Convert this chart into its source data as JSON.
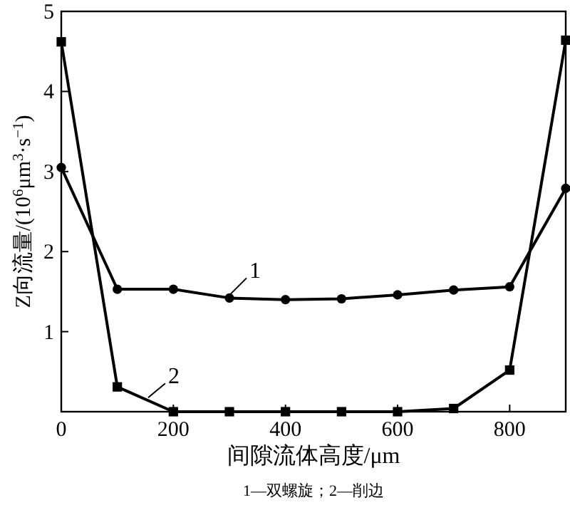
{
  "chart_data": {
    "type": "line",
    "xlabel": "间隙流体高度/μm",
    "ylabel": "Z向流量/(10$^{6}$μm$^{3}$·s$^{−1}$)",
    "x": [
      0,
      100,
      200,
      300,
      400,
      500,
      600,
      700,
      800,
      900
    ],
    "series": [
      {
        "name": "1",
        "color": "#000000",
        "marker": "circle",
        "values": [
          3.05,
          1.53,
          1.53,
          1.42,
          1.4,
          1.41,
          1.46,
          1.52,
          1.56,
          2.79
        ]
      },
      {
        "name": "2",
        "color": "#000000",
        "marker": "square",
        "values": [
          4.62,
          0.31,
          0.0,
          0.0,
          0.0,
          0.0,
          0.0,
          0.04,
          0.52,
          4.64
        ]
      }
    ],
    "xlim": [
      0,
      900
    ],
    "ylim": [
      0,
      5
    ],
    "xticks": [
      0,
      200,
      400,
      600,
      800
    ],
    "yticks": [
      1,
      2,
      3,
      4,
      5
    ],
    "grid": false,
    "legend": "center",
    "line_style": "solid",
    "annotations": [
      "1—双螺旋；2—削边"
    ]
  }
}
